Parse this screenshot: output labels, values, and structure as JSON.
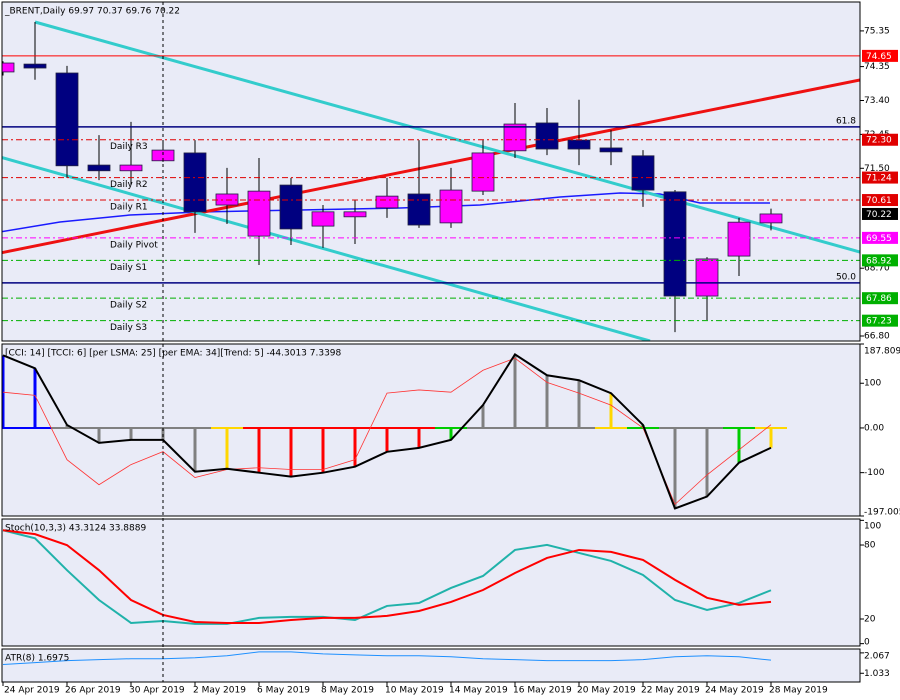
{
  "chart_data": [
    {
      "type": "candlestick",
      "title": "_BRENT,Daily  69.97 70.37 69.76 70.22",
      "categories": [
        "24 Apr 2019",
        null,
        "26 Apr 2019",
        null,
        "30 Apr 2019",
        null,
        "2 May 2019",
        null,
        "6 May 2019",
        null,
        "8 May 2019",
        null,
        "10 May 2019",
        null,
        "14 May 2019",
        null,
        "16 May 2019",
        null,
        "20 May 2019",
        null,
        "22 May 2019",
        null,
        "24 May 2019",
        null,
        "28 May 2019"
      ],
      "open": [
        74.2,
        74.42,
        74.17,
        71.59,
        71.43,
        71.71,
        71.93,
        70.47,
        69.6,
        71.03,
        69.88,
        70.14,
        70.39,
        70.78,
        69.97,
        70.86,
        71.99,
        72.77,
        72.29,
        72.07,
        71.85,
        70.84,
        67.92,
        69.04,
        69.97
      ],
      "high": [
        74.5,
        75.6,
        74.37,
        72.43,
        72.8,
        72.29,
        72.29,
        71.51,
        71.79,
        71.23,
        70.47,
        70.61,
        71.23,
        72.29,
        71.51,
        72.29,
        73.33,
        73.19,
        73.42,
        72.57,
        72.01,
        70.89,
        69.01,
        70.11,
        70.37
      ],
      "low": [
        74.1,
        73.98,
        71.23,
        71.17,
        71.03,
        71.68,
        69.69,
        69.94,
        68.79,
        69.35,
        69.27,
        69.38,
        70.11,
        69.83,
        69.83,
        70.75,
        71.79,
        71.87,
        71.59,
        71.59,
        70.42,
        66.91,
        67.25,
        68.48,
        69.76
      ],
      "close": [
        74.45,
        74.31,
        71.57,
        71.43,
        71.59,
        72.01,
        70.28,
        70.78,
        70.86,
        69.8,
        70.28,
        70.28,
        70.72,
        69.91,
        70.89,
        71.93,
        72.74,
        72.04,
        72.04,
        71.96,
        70.89,
        67.92,
        68.96,
        69.99,
        70.22
      ],
      "up_color": "#ff00ff",
      "down_color": "#000080",
      "ylim": [
        66.66,
        76.16
      ],
      "yticks": [
        75.35,
        74.35,
        {
          "value": 73.4,
          "label": "73.40"
        },
        72.45,
        {
          "value": 71.5,
          "label": "71.50"
        },
        {
          "value": 68.7,
          "label": "68.70"
        },
        {
          "value": 66.8,
          "label": "66.80"
        }
      ],
      "levels": [
        {
          "value": 74.65,
          "label": "74.65",
          "color": "#ff0000"
        },
        {
          "name": "Daily R3",
          "value": 72.3,
          "label": "72.30",
          "color": "#e00000"
        },
        {
          "name": "Daily R2",
          "value": 71.24,
          "label": "71.24",
          "color": "#e00000"
        },
        {
          "name": "Daily R1",
          "value": 70.61,
          "label": "70.61",
          "color": "#e00000"
        },
        {
          "name": "Daily Pivot",
          "value": 69.55,
          "label": "69.55",
          "color": "#ff00ff"
        },
        {
          "name": "Daily S1",
          "value": 68.92,
          "label": "68.92",
          "color": "#00b000"
        },
        {
          "name": "Daily S2",
          "value": 67.86,
          "label": "67.86",
          "color": "#00b000"
        },
        {
          "name": "Daily S3",
          "value": 67.23,
          "label": "67.23",
          "color": "#00b000"
        }
      ],
      "last_label": "70.22",
      "fib_levels": [
        {
          "label": "61.8",
          "value": 72.66
        },
        {
          "label": "50.0",
          "value": 68.29
        }
      ]
    },
    {
      "type": "cci",
      "title": "[CCI: 14] [TCCI: 6] [per LSMA: 25] [per EMA: 34][Trend: 5]  -44.3013 7.3398",
      "ylim": [
        -197.005,
        187.8091
      ],
      "yticks": [
        187.8091,
        100,
        {
          "value": 0,
          "label": "0.00"
        },
        -100,
        {
          "value": -197.005,
          "label": "-197.0050"
        }
      ],
      "series": [
        {
          "color": "#000000",
          "values": [
            162.4,
            133.5,
            6.7,
            -33.4,
            -26.7,
            -26.7,
            -97.9,
            -91.2,
            -100.1,
            -109.0,
            -100.1,
            -86.7,
            -53.4,
            -44.5,
            -26.7,
            51.2,
            164.6,
            117.9,
            106.8,
            77.8,
            6.7,
            -180.2,
            -153.5,
            -77.8,
            -44.3013
          ]
        },
        {
          "color": "#ff3333",
          "values": [
            80,
            73,
            -71,
            -127,
            -82,
            -53,
            -111,
            -93,
            -89,
            -93,
            -93,
            -71,
            78,
            85,
            80,
            129,
            156,
            102,
            78,
            51,
            0,
            -171,
            -105,
            -49,
            7.3398
          ]
        }
      ],
      "bar_colors": [
        "#0000ff",
        "#0000ff",
        "#808080",
        "#808080",
        "#808080",
        "#808080",
        "#808080",
        "#ffd700",
        "#ff0000",
        "#ff0000",
        "#ff0000",
        "#ff0000",
        "#ff0000",
        "#ff0000",
        "#00cc00",
        "#808080",
        "#808080",
        "#808080",
        "#808080",
        "#ffd700",
        "#00cc00",
        "#808080",
        "#808080",
        "#00cc00",
        "#ffd700"
      ]
    },
    {
      "type": "stochastic",
      "title": "Stoch(10,3,3) 43.3124 33.8889",
      "ylim": [
        -1.9,
        101.1
      ],
      "yticks": [
        100,
        80,
        20,
        0
      ],
      "series": [
        {
          "color": "#20b2aa",
          "values": [
            92,
            85.5,
            59.6,
            35.4,
            16.8,
            18.4,
            16.0,
            16.0,
            20.9,
            21.7,
            21.7,
            19.2,
            30.6,
            33.0,
            45.2,
            54.9,
            76.0,
            80.1,
            73.6,
            67.1,
            55.7,
            35.4,
            27.3,
            33.0,
            43.3124
          ]
        },
        {
          "color": "#ff0000",
          "values": [
            92,
            88.8,
            79.9,
            59.6,
            35.4,
            23.3,
            17.6,
            16.8,
            16.8,
            19.2,
            20.9,
            20.9,
            22.5,
            26.5,
            33.8,
            43.5,
            57.3,
            69.5,
            76.0,
            74.4,
            67.9,
            51.7,
            37.2,
            31.5,
            33.8889
          ]
        }
      ]
    },
    {
      "type": "line",
      "title": "ATR(8) 1.6975",
      "ylim": [
        0.59,
        2.264
      ],
      "yticks": [
        2.067,
        1.033
      ],
      "series": [
        {
          "color": "#1e90ff",
          "values": [
            1.476,
            1.575,
            1.673,
            1.723,
            1.772,
            1.772,
            1.821,
            1.92,
            2.117,
            2.117,
            2.018,
            1.969,
            1.92,
            1.92,
            1.87,
            1.772,
            1.723,
            1.673,
            1.673,
            1.673,
            1.723,
            1.87,
            1.92,
            1.87,
            1.6975
          ]
        }
      ]
    }
  ]
}
